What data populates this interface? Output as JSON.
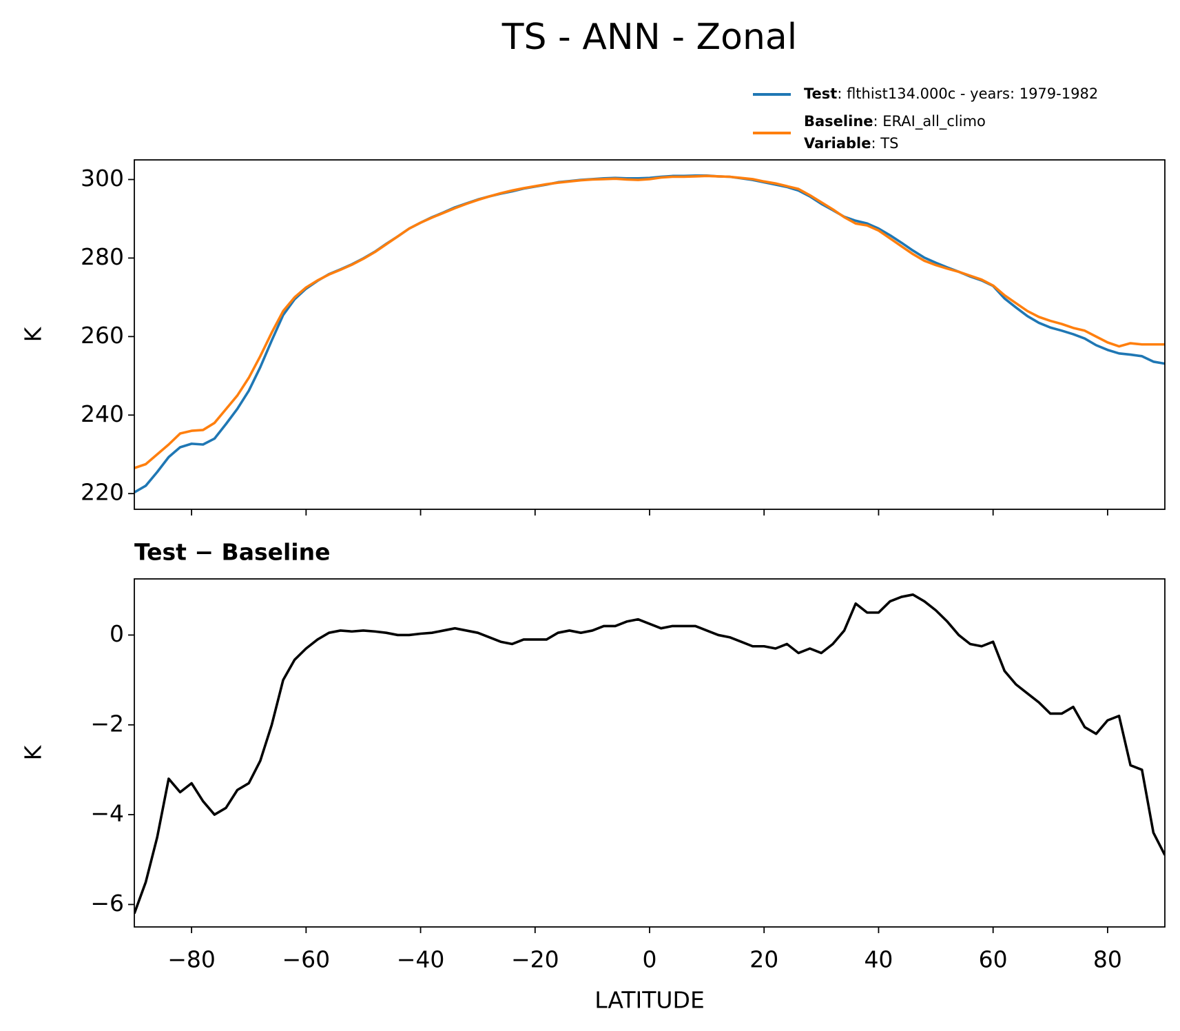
{
  "title": "TS - ANN - Zonal",
  "chart_data": [
    {
      "type": "line",
      "ylabel": "K",
      "x": [
        -90,
        -88,
        -86,
        -84,
        -82,
        -80,
        -78,
        -76,
        -74,
        -72,
        -70,
        -68,
        -66,
        -64,
        -62,
        -60,
        -58,
        -56,
        -54,
        -52,
        -50,
        -48,
        -46,
        -44,
        -42,
        -40,
        -38,
        -36,
        -34,
        -32,
        -30,
        -28,
        -26,
        -24,
        -22,
        -20,
        -18,
        -16,
        -14,
        -12,
        -10,
        -8,
        -6,
        -4,
        -2,
        0,
        2,
        4,
        6,
        8,
        10,
        12,
        14,
        16,
        18,
        20,
        22,
        24,
        26,
        28,
        30,
        32,
        34,
        36,
        38,
        40,
        42,
        44,
        46,
        48,
        50,
        52,
        54,
        56,
        58,
        60,
        62,
        64,
        66,
        68,
        70,
        72,
        74,
        76,
        78,
        80,
        82,
        84,
        86,
        88,
        90
      ],
      "series": [
        {
          "name": "Test",
          "description": ": flthist134.000c - years: 1979-1982",
          "color": "#1f77b4",
          "values": [
            220.3,
            222,
            225.5,
            229.3,
            231.8,
            232.7,
            232.5,
            234,
            237.7,
            241.6,
            246.2,
            252.2,
            259,
            265.5,
            269.5,
            272.2,
            274.2,
            275.9,
            277.1,
            278.4,
            279.9,
            281.6,
            283.6,
            285.5,
            287.5,
            289.0,
            290.4,
            291.6,
            292.9,
            293.9,
            294.9,
            295.7,
            296.4,
            297.0,
            297.7,
            298.2,
            298.7,
            299.3,
            299.6,
            299.9,
            300.1,
            300.3,
            300.4,
            300.3,
            300.3,
            300.4,
            300.7,
            300.9,
            300.9,
            301.0,
            301.0,
            300.8,
            300.7,
            300.3,
            299.9,
            299.3,
            298.7,
            298.1,
            297.2,
            295.7,
            293.8,
            292.2,
            290.5,
            289.5,
            288.8,
            287.5,
            285.8,
            283.9,
            281.9,
            280.1,
            278.8,
            277.6,
            276.5,
            275.3,
            274.3,
            272.9,
            269.7,
            267.4,
            265.2,
            263.5,
            262.3,
            261.5,
            260.6,
            259.5,
            257.8,
            256.6,
            255.7,
            255.4,
            255.0,
            253.6,
            253.1
          ]
        },
        {
          "name": "Baseline",
          "description": ": ERAI_all_climo",
          "color": "#ff7f0e",
          "values": [
            226.5,
            227.5,
            230,
            232.5,
            235.3,
            236,
            236.2,
            238,
            241.5,
            245,
            249.5,
            255,
            261,
            266.5,
            270,
            272.5,
            274.3,
            275.8,
            277,
            278.3,
            279.8,
            281.5,
            283.5,
            285.5,
            287.5,
            289,
            290.3,
            291.5,
            292.7,
            293.8,
            294.8,
            295.7,
            296.5,
            297.2,
            297.8,
            298.3,
            298.8,
            299.2,
            299.5,
            299.8,
            300.0,
            300.1,
            300.2,
            300.0,
            299.9,
            300.1,
            300.5,
            300.7,
            300.7,
            300.8,
            300.9,
            300.8,
            300.7,
            300.4,
            300.1,
            299.5,
            299.0,
            298.3,
            297.6,
            296.0,
            294.2,
            292.4,
            290.4,
            288.8,
            288.3,
            287.0,
            285.0,
            283.0,
            281.0,
            279.3,
            278.2,
            277.3,
            276.5,
            275.5,
            274.5,
            273.0,
            270.5,
            268.5,
            266.5,
            265,
            264,
            263.2,
            262.2,
            261.5,
            260,
            258.5,
            257.5,
            258.3,
            258,
            258,
            258
          ]
        }
      ],
      "legend_extra": {
        "name": "Variable",
        "description": ": TS"
      },
      "legend": "upper right",
      "xlim": [
        -90,
        90
      ],
      "xticks": [
        -80,
        -60,
        -40,
        -20,
        0,
        20,
        40,
        60,
        80
      ],
      "ylim": [
        216,
        305
      ],
      "yticks": [
        220,
        240,
        260,
        280,
        300
      ]
    },
    {
      "type": "line",
      "title": "Test − Baseline",
      "xlabel": "LATITUDE",
      "ylabel": "K",
      "x": [
        -90,
        -88,
        -86,
        -84,
        -82,
        -80,
        -78,
        -76,
        -74,
        -72,
        -70,
        -68,
        -66,
        -64,
        -62,
        -60,
        -58,
        -56,
        -54,
        -52,
        -50,
        -48,
        -46,
        -44,
        -42,
        -40,
        -38,
        -36,
        -34,
        -32,
        -30,
        -28,
        -26,
        -24,
        -22,
        -20,
        -18,
        -16,
        -14,
        -12,
        -10,
        -8,
        -6,
        -4,
        -2,
        0,
        2,
        4,
        6,
        8,
        10,
        12,
        14,
        16,
        18,
        20,
        22,
        24,
        26,
        28,
        30,
        32,
        34,
        36,
        38,
        40,
        42,
        44,
        46,
        48,
        50,
        52,
        54,
        56,
        58,
        60,
        62,
        64,
        66,
        68,
        70,
        72,
        74,
        76,
        78,
        80,
        82,
        84,
        86,
        88,
        90
      ],
      "series": [
        {
          "color": "#000000",
          "values": [
            -6.2,
            -5.5,
            -4.5,
            -3.2,
            -3.5,
            -3.3,
            -3.7,
            -4.0,
            -3.85,
            -3.45,
            -3.3,
            -2.8,
            -2.0,
            -1.0,
            -0.55,
            -0.3,
            -0.1,
            0.05,
            0.1,
            0.08,
            0.1,
            0.08,
            0.05,
            0.0,
            0.0,
            0.03,
            0.05,
            0.1,
            0.15,
            0.1,
            0.05,
            -0.05,
            -0.15,
            -0.2,
            -0.1,
            -0.1,
            -0.1,
            0.05,
            0.1,
            0.05,
            0.1,
            0.2,
            0.2,
            0.3,
            0.35,
            0.25,
            0.15,
            0.2,
            0.2,
            0.2,
            0.1,
            0.0,
            -0.05,
            -0.15,
            -0.25,
            -0.25,
            -0.3,
            -0.2,
            -0.4,
            -0.3,
            -0.4,
            -0.2,
            0.1,
            0.7,
            0.5,
            0.5,
            0.75,
            0.85,
            0.9,
            0.75,
            0.55,
            0.3,
            0.0,
            -0.2,
            -0.25,
            -0.15,
            -0.8,
            -1.1,
            -1.3,
            -1.5,
            -1.75,
            -1.75,
            -1.6,
            -2.05,
            -2.2,
            -1.9,
            -1.8,
            -2.9,
            -3.0,
            -4.4,
            -4.9
          ]
        }
      ],
      "xlim": [
        -90,
        90
      ],
      "xticks": [
        {
          "value": -80,
          "label": "−80"
        },
        {
          "value": -60,
          "label": "−60"
        },
        {
          "value": -40,
          "label": "−40"
        },
        {
          "value": -20,
          "label": "−20"
        },
        0,
        20,
        40,
        60,
        80
      ],
      "ylim": [
        -6.5,
        1.25
      ],
      "yticks": [
        {
          "value": -6,
          "label": "−6"
        },
        {
          "value": -4,
          "label": "−4"
        },
        {
          "value": -2,
          "label": "−2"
        },
        0
      ]
    }
  ]
}
